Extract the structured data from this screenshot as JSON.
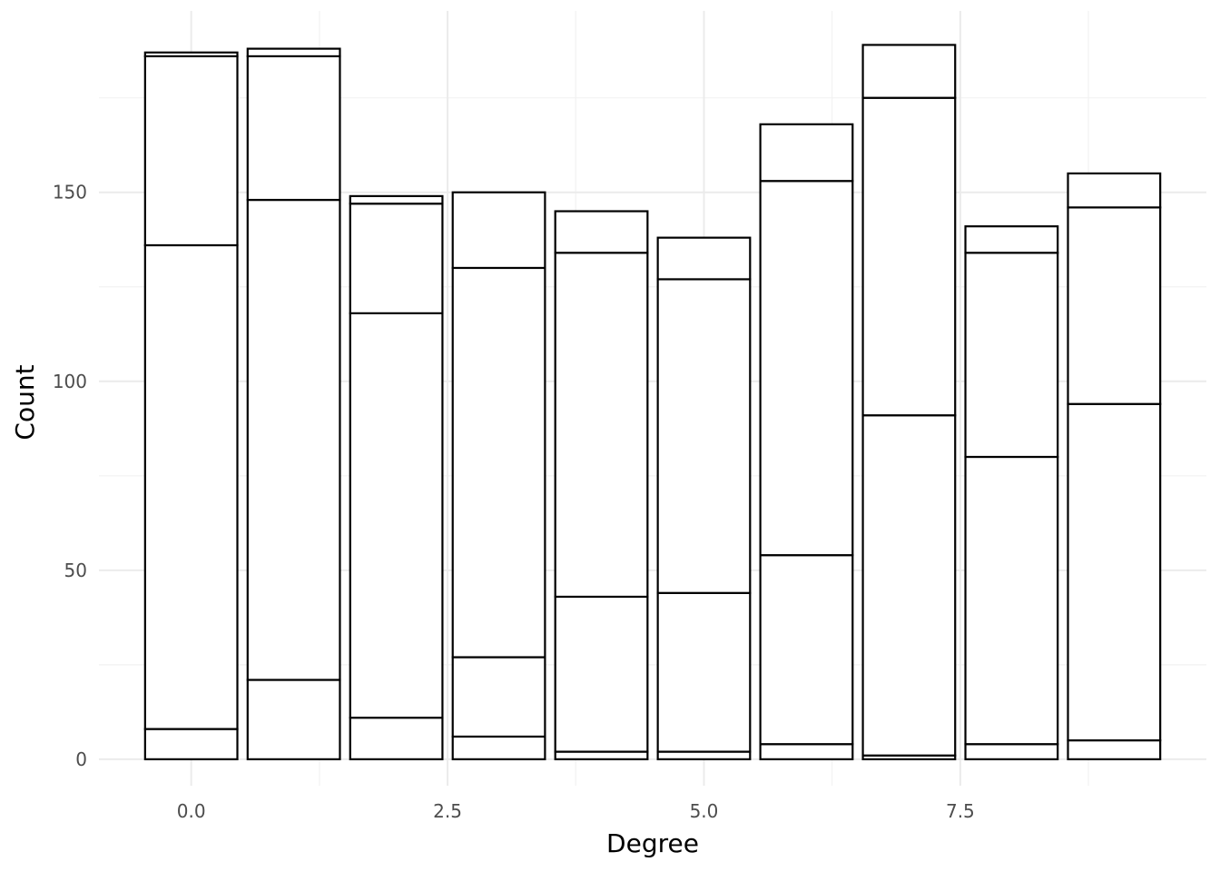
{
  "chart_data": {
    "type": "bar",
    "stacked": true,
    "xlabel": "Degree",
    "ylabel": "Count",
    "xlim": [
      -0.9,
      9.9
    ],
    "ylim": [
      -7,
      198
    ],
    "x_ticks": [
      0.0,
      2.5,
      5.0,
      7.5
    ],
    "x_tick_labels": [
      "0.0",
      "2.5",
      "5.0",
      "7.5"
    ],
    "y_ticks": [
      0,
      50,
      100,
      150
    ],
    "y_tick_labels": [
      "0",
      "50",
      "100",
      "150"
    ],
    "bar_width": 0.9,
    "bar_fill": "#ffffff",
    "bar_stroke": "#000000",
    "grid": true,
    "categories": [
      0,
      1,
      2,
      3,
      4,
      5,
      6,
      7,
      8,
      9
    ],
    "stack_boundaries": [
      [
        8,
        136,
        186,
        187
      ],
      [
        21,
        148,
        186,
        188
      ],
      [
        11,
        118,
        147,
        149
      ],
      [
        6,
        27,
        130,
        150
      ],
      [
        2,
        43,
        134,
        145
      ],
      [
        2,
        44,
        127,
        138
      ],
      [
        4,
        54,
        153,
        168
      ],
      [
        1,
        91,
        175,
        189
      ],
      [
        4,
        80,
        134,
        141
      ],
      [
        5,
        94,
        146,
        155
      ]
    ],
    "totals": [
      187,
      188,
      149,
      150,
      145,
      138,
      168,
      189,
      141,
      155
    ]
  }
}
